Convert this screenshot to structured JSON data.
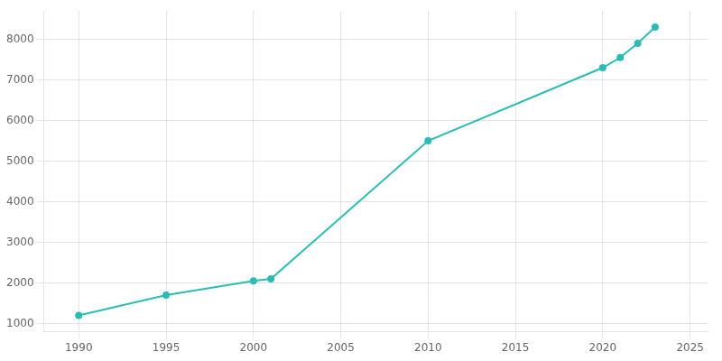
{
  "chart_data": {
    "type": "line",
    "x": [
      1990,
      1995,
      2000,
      2001,
      2010,
      2020,
      2021,
      2022,
      2023
    ],
    "values": [
      1200,
      1700,
      2050,
      2100,
      5500,
      7300,
      7550,
      7900,
      8300
    ],
    "color": "#2bbdb4",
    "marker": "circle",
    "xlim": [
      1988,
      2026
    ],
    "ylim": [
      800,
      8700
    ],
    "xticks": [
      1990,
      1995,
      2000,
      2005,
      2010,
      2015,
      2020,
      2025
    ],
    "yticks": [
      1000,
      2000,
      3000,
      4000,
      5000,
      6000,
      7000,
      8000
    ],
    "grid": true
  }
}
